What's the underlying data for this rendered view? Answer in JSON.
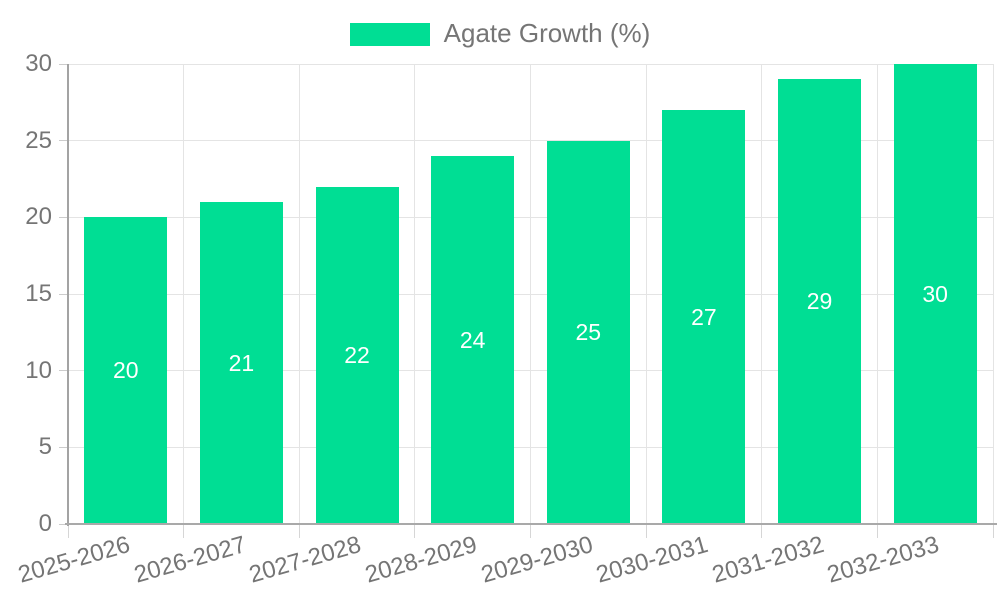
{
  "legend": {
    "label": "Agate Growth (%)"
  },
  "chart_data": {
    "type": "bar",
    "title": "",
    "series": [
      {
        "name": "Agate Growth (%)",
        "values": [
          20,
          21,
          22,
          24,
          25,
          27,
          29,
          30
        ]
      }
    ],
    "categories": [
      "2025-2026",
      "2026-2027",
      "2027-2028",
      "2028-2029",
      "2029-2030",
      "2030-2031",
      "2031-2032",
      "2032-2033"
    ],
    "values": [
      20,
      21,
      22,
      24,
      25,
      27,
      29,
      30
    ],
    "value_labels": [
      "20",
      "21",
      "22",
      "24",
      "25",
      "27",
      "29",
      "30"
    ],
    "xlabel": "",
    "ylabel": "",
    "ylim": [
      0,
      30
    ],
    "yticks": [
      0,
      5,
      10,
      15,
      20,
      25,
      30
    ],
    "grid": true,
    "legend_position": "top",
    "bar_color": "#00de94",
    "value_label_color": "#ffffff",
    "axis_text_color": "#757575"
  }
}
